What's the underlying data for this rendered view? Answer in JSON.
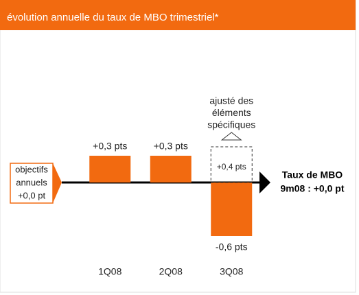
{
  "chart_data": {
    "type": "bar",
    "title": "évolution annuelle du taux de MBO trimestriel*",
    "categories": [
      "1Q08",
      "2Q08",
      "3Q08"
    ],
    "series": [
      {
        "name": null,
        "color": "#f26a10",
        "values": [
          0.3,
          0.3,
          -0.6
        ],
        "value_labels": [
          "+0,3 pts",
          "+0,3 pts",
          "-0,6 pts"
        ]
      },
      {
        "name": [
          "ajusté des",
          "éléments",
          "spécifiques"
        ],
        "color": "#333333",
        "values": [
          null,
          null,
          0.4
        ],
        "value_labels": [
          null,
          null,
          "+0,4 pts"
        ]
      }
    ],
    "start_label": [
      "objectifs",
      "annuels",
      "+0,0 pt"
    ],
    "end_label": [
      "Taux de MBO",
      "9m08 : +0,0 pt"
    ],
    "ylim": [
      -0.8,
      0.8
    ]
  }
}
